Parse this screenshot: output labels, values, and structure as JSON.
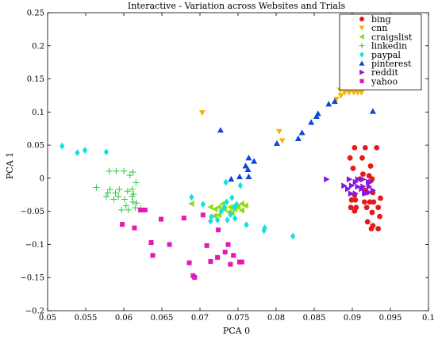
{
  "chart_data": {
    "type": "scatter",
    "title": "Interactive - Variation across Websites and Trials",
    "xlabel": "PCA 0",
    "ylabel": "PCA 1",
    "xlim": [
      0.05,
      0.1
    ],
    "ylim": [
      -0.2,
      0.25
    ],
    "xticks": [
      0.05,
      0.055,
      0.06,
      0.065,
      0.07,
      0.075,
      0.08,
      0.085,
      0.09,
      0.095,
      0.1
    ],
    "xtick_labels": [
      "0.05",
      "0.055",
      "0.06",
      "0.065",
      "0.07",
      "0.075",
      "0.08",
      "0.085",
      "0.09",
      "0.095",
      "0.1"
    ],
    "yticks": [
      -0.2,
      -0.15,
      -0.1,
      -0.05,
      0,
      0.05,
      0.1,
      0.15,
      0.2,
      0.25
    ],
    "ytick_labels": [
      "−0.2",
      "−0.15",
      "−0.1",
      "−0.05",
      "0",
      "0.05",
      "0.1",
      "0.15",
      "0.2",
      "0.25"
    ],
    "grid": false,
    "legend_position": "top-right",
    "series": [
      {
        "name": "bing",
        "color": "#e31a1c",
        "marker": "circle",
        "points": [
          [
            0.0903,
            0.0461
          ],
          [
            0.0917,
            0.0461
          ],
          [
            0.0932,
            0.0461
          ],
          [
            0.0897,
            0.0306
          ],
          [
            0.0913,
            0.0306
          ],
          [
            0.0924,
            0.0184
          ],
          [
            0.0901,
            0.0149
          ],
          [
            0.0914,
            0.0063
          ],
          [
            0.0922,
            0.0037
          ],
          [
            0.091,
            -0.0011
          ],
          [
            0.0926,
            -0.0011
          ],
          [
            0.0917,
            -0.0184
          ],
          [
            0.0927,
            -0.0216
          ],
          [
            0.0903,
            -0.0253
          ],
          [
            0.0937,
            -0.0301
          ],
          [
            0.0899,
            -0.0328
          ],
          [
            0.0904,
            -0.0328
          ],
          [
            0.0916,
            -0.0359
          ],
          [
            0.0923,
            -0.0359
          ],
          [
            0.0928,
            -0.0359
          ],
          [
            0.0898,
            -0.0441
          ],
          [
            0.0905,
            -0.0441
          ],
          [
            0.0919,
            -0.0441
          ],
          [
            0.0934,
            -0.0441
          ],
          [
            0.0903,
            -0.0495
          ],
          [
            0.0926,
            -0.0517
          ],
          [
            0.0936,
            -0.0577
          ],
          [
            0.092,
            -0.0659
          ],
          [
            0.0927,
            -0.0717
          ],
          [
            0.0934,
            -0.0762
          ],
          [
            0.0925,
            -0.0762
          ]
        ]
      },
      {
        "name": "cnn",
        "color": "#f6b40e",
        "marker": "triangle-down",
        "points": [
          [
            0.0894,
            0.1418
          ],
          [
            0.0904,
            0.1366
          ],
          [
            0.0884,
            0.1331
          ],
          [
            0.089,
            0.1294
          ],
          [
            0.0896,
            0.1294
          ],
          [
            0.0902,
            0.1294
          ],
          [
            0.0907,
            0.1294
          ],
          [
            0.0912,
            0.1294
          ],
          [
            0.0885,
            0.1247
          ],
          [
            0.0879,
            0.1191
          ],
          [
            0.0703,
            0.0989
          ],
          [
            0.0804,
            0.0706
          ],
          [
            0.0808,
            0.0566
          ]
        ]
      },
      {
        "name": "craigslist",
        "color": "#8ede0c",
        "marker": "triangle-left",
        "points": [
          [
            0.0689,
            -0.0385
          ],
          [
            0.073,
            -0.0385
          ],
          [
            0.0755,
            -0.0385
          ],
          [
            0.076,
            -0.0412
          ],
          [
            0.0714,
            -0.0435
          ],
          [
            0.0725,
            -0.0435
          ],
          [
            0.074,
            -0.0435
          ],
          [
            0.075,
            -0.0435
          ],
          [
            0.072,
            -0.0466
          ],
          [
            0.0732,
            -0.0466
          ],
          [
            0.0746,
            -0.0466
          ],
          [
            0.0755,
            -0.0486
          ],
          [
            0.0738,
            -0.051
          ],
          [
            0.0742,
            -0.0519
          ],
          [
            0.0725,
            -0.0557
          ],
          [
            0.0719,
            -0.0568
          ]
        ]
      },
      {
        "name": "linkedin",
        "color": "#2ccc3b",
        "marker": "plus",
        "points": [
          [
            0.0581,
            0.0108
          ],
          [
            0.059,
            0.0108
          ],
          [
            0.06,
            0.0108
          ],
          [
            0.0612,
            0.0095
          ],
          [
            0.0608,
            0.0045
          ],
          [
            0.0616,
            -0.0066
          ],
          [
            0.0564,
            -0.0139
          ],
          [
            0.0582,
            -0.0167
          ],
          [
            0.0594,
            -0.0167
          ],
          [
            0.0611,
            -0.0167
          ],
          [
            0.0605,
            -0.0196
          ],
          [
            0.0579,
            -0.0223
          ],
          [
            0.0589,
            -0.0223
          ],
          [
            0.0613,
            -0.024
          ],
          [
            0.0577,
            -0.0275
          ],
          [
            0.0593,
            -0.0275
          ],
          [
            0.0611,
            -0.0275
          ],
          [
            0.0587,
            -0.0319
          ],
          [
            0.0601,
            -0.0319
          ],
          [
            0.0612,
            -0.0359
          ],
          [
            0.0617,
            -0.0375
          ],
          [
            0.0603,
            -0.0415
          ],
          [
            0.0615,
            -0.0445
          ],
          [
            0.0622,
            -0.0455
          ],
          [
            0.0597,
            -0.0478
          ],
          [
            0.0606,
            -0.0478
          ]
        ]
      },
      {
        "name": "paypal",
        "color": "#16e0df",
        "marker": "diamond",
        "points": [
          [
            0.0519,
            0.0487
          ],
          [
            0.0549,
            0.0421
          ],
          [
            0.0539,
            0.0385
          ],
          [
            0.0577,
            0.0397
          ],
          [
            0.0734,
            -0.0062
          ],
          [
            0.0753,
            -0.0111
          ],
          [
            0.0689,
            -0.0286
          ],
          [
            0.0742,
            -0.0293
          ],
          [
            0.0735,
            -0.0359
          ],
          [
            0.0748,
            -0.0395
          ],
          [
            0.0704,
            -0.0395
          ],
          [
            0.0732,
            -0.0439
          ],
          [
            0.0745,
            -0.0439
          ],
          [
            0.0728,
            -0.0497
          ],
          [
            0.074,
            -0.0549
          ],
          [
            0.0715,
            -0.0583
          ],
          [
            0.0746,
            -0.0607
          ],
          [
            0.0723,
            -0.0631
          ],
          [
            0.0736,
            -0.0631
          ],
          [
            0.0714,
            -0.0649
          ],
          [
            0.0761,
            -0.0703
          ],
          [
            0.0785,
            -0.075
          ],
          [
            0.0784,
            -0.079
          ],
          [
            0.0822,
            -0.0875
          ]
        ]
      },
      {
        "name": "pinterest",
        "color": "#0c47dc",
        "marker": "triangle-up",
        "points": [
          [
            0.0927,
            0.1011
          ],
          [
            0.0877,
            0.1161
          ],
          [
            0.0869,
            0.1121
          ],
          [
            0.0855,
            0.0976
          ],
          [
            0.0853,
            0.0934
          ],
          [
            0.0846,
            0.0845
          ],
          [
            0.0834,
            0.0689
          ],
          [
            0.0829,
            0.06
          ],
          [
            0.0801,
            0.0527
          ],
          [
            0.0727,
            0.0726
          ],
          [
            0.0764,
            0.0308
          ],
          [
            0.0771,
            0.0257
          ],
          [
            0.076,
            0.0187
          ],
          [
            0.0763,
            0.0133
          ],
          [
            0.0752,
            0.0023
          ],
          [
            0.0764,
            0.0024
          ],
          [
            0.0741,
            -0.0012
          ]
        ]
      },
      {
        "name": "reddit",
        "color": "#8b16e0",
        "marker": "triangle-right",
        "points": [
          [
            0.0866,
            -0.0016
          ],
          [
            0.0896,
            -0.0016
          ],
          [
            0.0907,
            -0.0016
          ],
          [
            0.0914,
            -0.0016
          ],
          [
            0.0904,
            -0.0058
          ],
          [
            0.0921,
            -0.0058
          ],
          [
            0.0924,
            -0.0058
          ],
          [
            0.0889,
            -0.0114
          ],
          [
            0.0899,
            -0.0112
          ],
          [
            0.0907,
            -0.0127
          ],
          [
            0.0914,
            -0.0127
          ],
          [
            0.0922,
            -0.0127
          ],
          [
            0.0894,
            -0.0162
          ],
          [
            0.0912,
            -0.0162
          ],
          [
            0.0927,
            -0.0182
          ],
          [
            0.0916,
            -0.0216
          ],
          [
            0.0922,
            -0.0216
          ],
          [
            0.0898,
            -0.0231
          ],
          [
            0.0904,
            -0.0231
          ],
          [
            0.0917,
            -0.0231
          ]
        ]
      },
      {
        "name": "yahoo",
        "color": "#e816b6",
        "marker": "square",
        "points": [
          [
            0.0622,
            -0.048
          ],
          [
            0.0628,
            -0.048
          ],
          [
            0.0598,
            -0.0697
          ],
          [
            0.0614,
            -0.075
          ],
          [
            0.0649,
            -0.0618
          ],
          [
            0.0679,
            -0.0601
          ],
          [
            0.0704,
            -0.0555
          ],
          [
            0.0724,
            -0.078
          ],
          [
            0.0636,
            -0.0971
          ],
          [
            0.066,
            -0.1001
          ],
          [
            0.0709,
            -0.1017
          ],
          [
            0.0737,
            -0.1001
          ],
          [
            0.0638,
            -0.1165
          ],
          [
            0.0733,
            -0.1115
          ],
          [
            0.0744,
            -0.1165
          ],
          [
            0.0723,
            -0.1196
          ],
          [
            0.0714,
            -0.1257
          ],
          [
            0.0752,
            -0.1265
          ],
          [
            0.0755,
            -0.1265
          ],
          [
            0.0686,
            -0.1277
          ],
          [
            0.074,
            -0.13
          ],
          [
            0.0691,
            -0.1471
          ],
          [
            0.0693,
            -0.1497
          ]
        ]
      }
    ]
  }
}
